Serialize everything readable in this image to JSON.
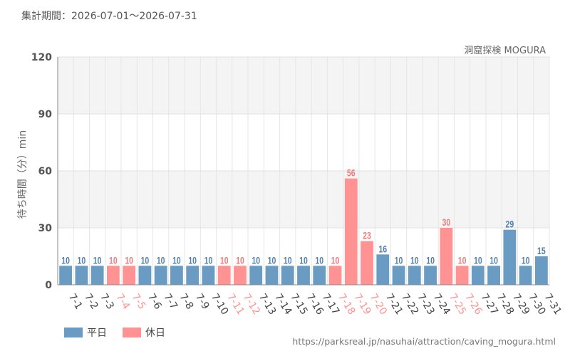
{
  "header": {
    "period_label": "集計期間：2026-07-01～2026-07-31"
  },
  "attraction_name": "洞窟探検 MOGURA",
  "source_url": "https://parksreal.jp/nasuhai/attraction/caving_mogura.html",
  "legend": {
    "weekday_label": "平日",
    "holiday_label": "休日"
  },
  "colors": {
    "weekday": "#6a9bc3",
    "holiday": "#ff9393",
    "weekday_text": "#4f7fae",
    "holiday_text": "#f07a7a"
  },
  "chart_data": {
    "type": "bar",
    "ylabel": "待ち時間（分）min",
    "ylim": [
      0,
      120
    ],
    "yticks": [
      0,
      30,
      60,
      90,
      120
    ],
    "grid": true,
    "legend_position": "bottom-left",
    "categories": [
      "7-1",
      "7-2",
      "7-3",
      "7-4",
      "7-5",
      "7-6",
      "7-7",
      "7-8",
      "7-9",
      "7-10",
      "7-11",
      "7-12",
      "7-13",
      "7-14",
      "7-15",
      "7-16",
      "7-17",
      "7-18",
      "7-19",
      "7-20",
      "7-21",
      "7-22",
      "7-23",
      "7-24",
      "7-25",
      "7-26",
      "7-27",
      "7-28",
      "7-29",
      "7-30",
      "7-31"
    ],
    "values": [
      10,
      10,
      10,
      10,
      10,
      10,
      10,
      10,
      10,
      10,
      10,
      10,
      10,
      10,
      10,
      10,
      10,
      10,
      56,
      23,
      16,
      10,
      10,
      10,
      30,
      10,
      10,
      10,
      29,
      10,
      15
    ],
    "day_type": [
      "weekday",
      "weekday",
      "weekday",
      "holiday",
      "holiday",
      "weekday",
      "weekday",
      "weekday",
      "weekday",
      "weekday",
      "holiday",
      "holiday",
      "weekday",
      "weekday",
      "weekday",
      "weekday",
      "weekday",
      "holiday",
      "holiday",
      "holiday",
      "weekday",
      "weekday",
      "weekday",
      "weekday",
      "holiday",
      "holiday",
      "weekday",
      "weekday",
      "weekday",
      "weekday",
      "weekday"
    ]
  }
}
